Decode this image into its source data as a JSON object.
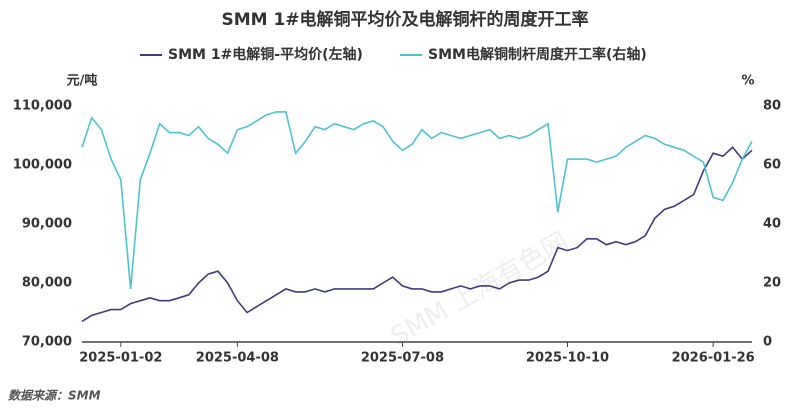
{
  "chart_data": {
    "type": "line",
    "title": "SMM 1#电解铜平均价及电解铜杆的周度开工率",
    "y_unit": "元/吨",
    "y2_unit": "%",
    "source": "数据来源：SMM",
    "watermark": "SMM 上海有色网",
    "categories": [
      null,
      null,
      null,
      null,
      "2025-01-02",
      null,
      null,
      null,
      null,
      null,
      null,
      null,
      null,
      null,
      null,
      null,
      "2025-04-08",
      null,
      null,
      null,
      null,
      null,
      null,
      null,
      null,
      null,
      null,
      null,
      null,
      null,
      null,
      null,
      null,
      "2025-07-08",
      null,
      null,
      null,
      null,
      null,
      null,
      null,
      null,
      null,
      null,
      null,
      null,
      null,
      null,
      null,
      null,
      "2025-10-10",
      null,
      null,
      null,
      null,
      null,
      null,
      null,
      null,
      null,
      null,
      null,
      null,
      null,
      null,
      "2026-01-26",
      null,
      null,
      null,
      null
    ],
    "series": [
      {
        "name": "SMM 1#电解铜-平均价(左轴)",
        "color": "#3e3d7c",
        "axis": "y",
        "values": [
          73500,
          74500,
          75000,
          75500,
          75500,
          76500,
          77000,
          77500,
          77000,
          77000,
          77500,
          78000,
          80000,
          81500,
          82000,
          80000,
          77000,
          75000,
          76000,
          77000,
          78000,
          79000,
          78500,
          78500,
          79000,
          78500,
          79000,
          79000,
          79000,
          79000,
          79000,
          80000,
          81000,
          79500,
          79000,
          79000,
          78500,
          78500,
          79000,
          79500,
          79000,
          79500,
          79500,
          79000,
          80000,
          80500,
          80500,
          81000,
          82000,
          86000,
          85500,
          86000,
          87500,
          87500,
          86500,
          87000,
          86500,
          87000,
          88000,
          91000,
          92500,
          93000,
          94000,
          95000,
          99000,
          102000,
          101500,
          103000,
          101000,
          102500
        ]
      },
      {
        "name": "SMM电解铜制杆周度开工率(右轴)",
        "color": "#4fc3cf",
        "axis": "y2",
        "values": [
          66,
          76,
          72,
          62,
          55,
          18,
          55,
          64,
          74,
          71,
          71,
          70,
          73,
          69,
          67,
          64,
          72,
          73,
          75,
          77,
          78,
          78,
          64,
          68,
          73,
          72,
          74,
          73,
          72,
          74,
          75,
          73,
          68,
          65,
          67,
          72,
          69,
          71,
          70,
          69,
          70,
          71,
          72,
          69,
          70,
          69,
          70,
          72,
          74,
          44,
          62,
          62,
          62,
          61,
          62,
          63,
          66,
          68,
          70,
          69,
          67,
          66,
          65,
          63,
          61,
          49,
          48,
          54,
          62,
          68
        ]
      }
    ],
    "ylim": [
      70000,
      110000
    ],
    "yticks": [
      {
        "value": 70000,
        "label": "70,000"
      },
      {
        "value": 80000,
        "label": "80,000"
      },
      {
        "value": 90000,
        "label": "90,000"
      },
      {
        "value": 100000,
        "label": "100,000"
      },
      {
        "value": 110000,
        "label": "110,000"
      }
    ],
    "y2lim": [
      0,
      80
    ],
    "y2ticks": [
      0,
      20,
      40,
      60,
      80
    ],
    "legend": "top"
  }
}
